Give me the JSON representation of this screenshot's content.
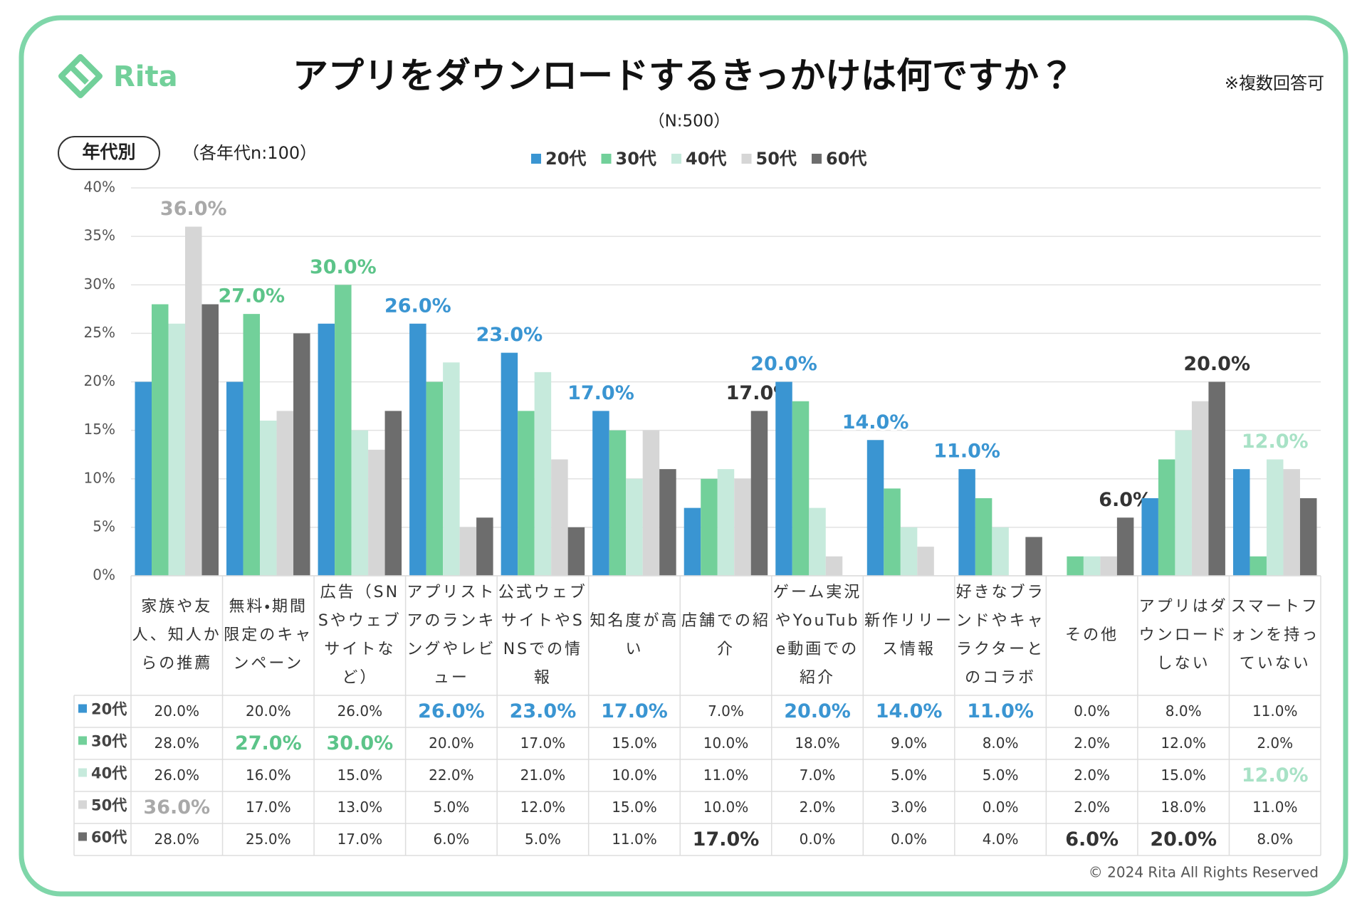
{
  "brand": "Rita",
  "chart_data": {
    "type": "bar",
    "title": "アプリをダウンロードするきっかけは何ですか？",
    "subtitle": "（N:500）",
    "note": "※複数回答可",
    "group_label": "年代別",
    "group_note": "（各年代n:100）",
    "copyright": "© 2024 Rita All Rights Reserved",
    "categories": [
      "家族や友人、知人からの推薦",
      "無料・期間限定のキャンペーン",
      "広告（SNSやウェブサイトなど）",
      "アプリストアのランキングやレビュー",
      "公式ウェブサイトやSNSでの情報",
      "知名度が高い",
      "店舗での紹介",
      "ゲーム実況やYouTube動画での紹介",
      "新作リリース情報",
      "好きなブランドやキャラクターとのコラボ",
      "その他",
      "アプリはダウンロードしない",
      "スマートフォンを持っていない"
    ],
    "series": [
      {
        "name": "20代",
        "color": "#3a95d2",
        "label_color": "#3a95d2",
        "values": [
          20,
          20,
          26,
          26,
          23,
          17,
          7,
          20,
          14,
          11,
          0,
          8,
          11
        ],
        "value_labels": [
          "20.0%",
          "20.0%",
          "26.0%",
          "26.0%",
          "23.0%",
          "17.0%",
          "7.0%",
          "20.0%",
          "14.0%",
          "11.0%",
          "0.0%",
          "8.0%",
          "11.0%"
        ]
      },
      {
        "name": "30代",
        "color": "#72d09a",
        "label_color": "#5cc489",
        "values": [
          28,
          27,
          30,
          20,
          17,
          15,
          10,
          18,
          9,
          8,
          2,
          12,
          2
        ],
        "value_labels": [
          "28.0%",
          "27.0%",
          "30.0%",
          "20.0%",
          "17.0%",
          "15.0%",
          "10.0%",
          "18.0%",
          "9.0%",
          "8.0%",
          "2.0%",
          "12.0%",
          "2.0%"
        ]
      },
      {
        "name": "40代",
        "color": "#c6eadc",
        "label_color": "#a8e2c6",
        "values": [
          26,
          16,
          15,
          22,
          21,
          10,
          11,
          7,
          5,
          5,
          2,
          15,
          12
        ],
        "value_labels": [
          "26.0%",
          "16.0%",
          "15.0%",
          "22.0%",
          "21.0%",
          "10.0%",
          "11.0%",
          "7.0%",
          "5.0%",
          "5.0%",
          "2.0%",
          "15.0%",
          "12.0%"
        ]
      },
      {
        "name": "50代",
        "color": "#d6d6d6",
        "label_color": "#a9a9a9",
        "values": [
          36,
          17,
          13,
          5,
          12,
          15,
          10,
          2,
          3,
          0,
          2,
          18,
          11
        ],
        "value_labels": [
          "36.0%",
          "17.0%",
          "13.0%",
          "5.0%",
          "12.0%",
          "15.0%",
          "10.0%",
          "2.0%",
          "3.0%",
          "0.0%",
          "2.0%",
          "18.0%",
          "11.0%"
        ]
      },
      {
        "name": "60代",
        "color": "#6d6d6d",
        "label_color": "#333333",
        "values": [
          28,
          25,
          17,
          6,
          5,
          11,
          17,
          0,
          0,
          4,
          6,
          20,
          8
        ],
        "value_labels": [
          "28.0%",
          "25.0%",
          "17.0%",
          "6.0%",
          "5.0%",
          "11.0%",
          "17.0%",
          "0.0%",
          "0.0%",
          "4.0%",
          "6.0%",
          "20.0%",
          "8.0%"
        ]
      }
    ],
    "ylim": [
      0,
      40
    ],
    "yticks": [
      {
        "value": 0,
        "label": "0%"
      },
      {
        "value": 5,
        "label": "5%"
      },
      {
        "value": 10,
        "label": "10%"
      },
      {
        "value": 15,
        "label": "15%"
      },
      {
        "value": 20,
        "label": "20%"
      },
      {
        "value": 25,
        "label": "25%"
      },
      {
        "value": 30,
        "label": "30%"
      },
      {
        "value": 35,
        "label": "35%"
      },
      {
        "value": 40,
        "label": "40%"
      }
    ],
    "grid": true,
    "legend": "top"
  }
}
